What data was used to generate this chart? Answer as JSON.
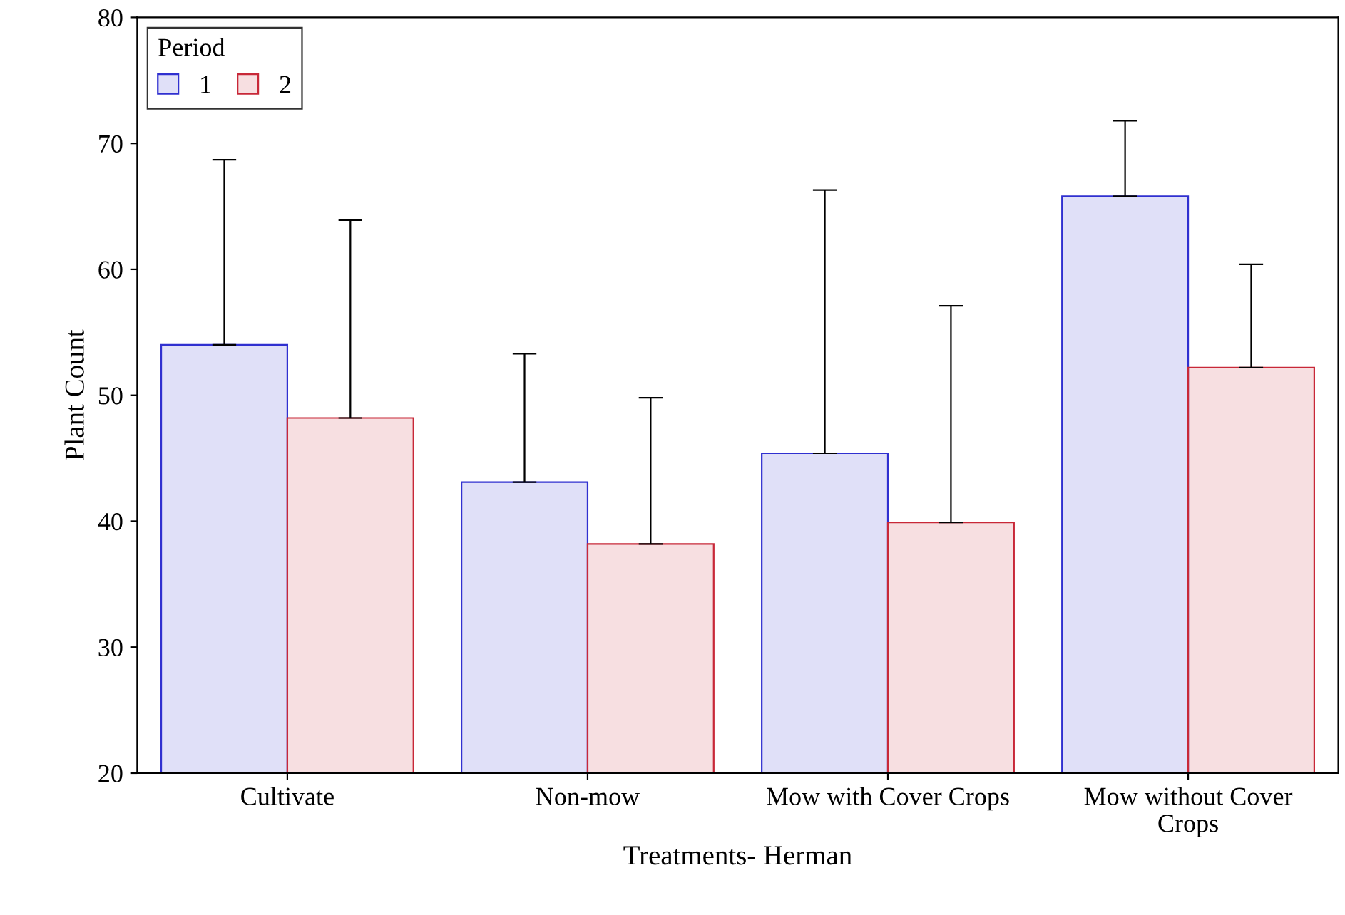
{
  "chart_data": {
    "type": "bar",
    "xlabel": "Treatments- Herman",
    "ylabel": "Plant Count",
    "legend_title": "Period",
    "legend": "top left",
    "grid": false,
    "categories": [
      "Cultivate",
      "Non-mow",
      "Mow with Cover Crops",
      "Mow without Cover Crops"
    ],
    "ylim": [
      20,
      80
    ],
    "yticks": [
      20,
      30,
      40,
      50,
      60,
      70,
      80
    ],
    "series": [
      {
        "name": "1",
        "color": "#3030d0",
        "values": [
          54.0,
          43.1,
          45.4,
          65.8
        ],
        "errors": [
          [
            54.0,
            68.7
          ],
          [
            43.1,
            53.3
          ],
          [
            45.4,
            66.3
          ],
          [
            65.8,
            71.8
          ]
        ]
      },
      {
        "name": "2",
        "color": "#c82838",
        "values": [
          48.2,
          38.2,
          39.9,
          52.2
        ],
        "errors": [
          [
            48.2,
            63.9
          ],
          [
            38.2,
            49.8
          ],
          [
            39.9,
            57.1
          ],
          [
            52.2,
            60.4
          ]
        ]
      }
    ]
  }
}
